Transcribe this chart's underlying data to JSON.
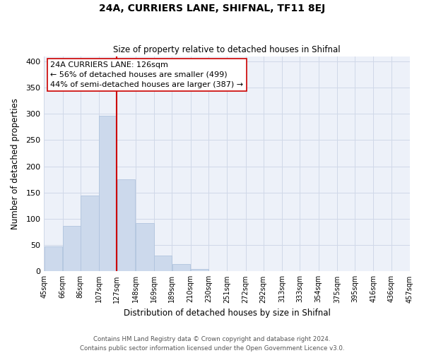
{
  "title": "24A, CURRIERS LANE, SHIFNAL, TF11 8EJ",
  "subtitle": "Size of property relative to detached houses in Shifnal",
  "xlabel": "Distribution of detached houses by size in Shifnal",
  "ylabel": "Number of detached properties",
  "bar_color": "#ccd9ec",
  "bar_edge_color": "#b0c4de",
  "vline_x": 127,
  "vline_color": "#cc0000",
  "bin_edges": [
    45,
    66,
    86,
    107,
    127,
    148,
    169,
    189,
    210,
    230,
    251,
    272,
    292,
    313,
    333,
    354,
    375,
    395,
    416,
    436,
    457
  ],
  "bar_heights": [
    47,
    87,
    145,
    297,
    175,
    92,
    30,
    14,
    5,
    0,
    0,
    1,
    0,
    0,
    0,
    0,
    0,
    1,
    0,
    1
  ],
  "ylim": [
    0,
    410
  ],
  "yticks": [
    0,
    50,
    100,
    150,
    200,
    250,
    300,
    350,
    400
  ],
  "annotation_title": "24A CURRIERS LANE: 126sqm",
  "annotation_line1": "← 56% of detached houses are smaller (499)",
  "annotation_line2": "44% of semi-detached houses are larger (387) →",
  "annotation_box_facecolor": "#ffffff",
  "annotation_box_edgecolor": "#cc0000",
  "footnote1": "Contains HM Land Registry data © Crown copyright and database right 2024.",
  "footnote2": "Contains public sector information licensed under the Open Government Licence v3.0.",
  "grid_color": "#d0d8e8",
  "background_color": "#edf1f9"
}
